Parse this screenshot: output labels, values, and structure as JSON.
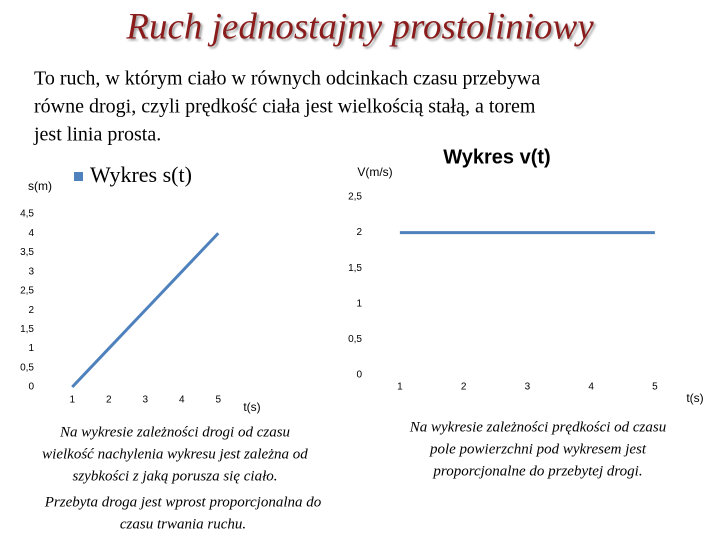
{
  "title": "Ruch jednostajny prostoliniowy",
  "intro": [
    "To ruch, w którym ciało w równych odcinkach czasu przebywa",
    "równe drogi, czyli prędkość ciała jest wielkością stałą, a torem",
    "jest linia prosta."
  ],
  "chart_data": [
    {
      "type": "line",
      "title": "Wykres s(t)",
      "y_label": "s(m)",
      "x_label": "t(s)",
      "color": "#4f81bd",
      "categories": [
        "1",
        "2",
        "3",
        "4",
        "5"
      ],
      "values": [
        0,
        1,
        2,
        3,
        4
      ],
      "ylim": [
        0,
        4.5
      ],
      "yticks": [
        0,
        {
          "value": 0.5,
          "label": "0,5"
        },
        1,
        {
          "value": 1.5,
          "label": "1,5"
        },
        2,
        {
          "value": 2.5,
          "label": "2,5"
        },
        3,
        {
          "value": 3.5,
          "label": "3,5"
        },
        4,
        {
          "value": 4.5,
          "label": "4,5"
        }
      ]
    },
    {
      "type": "line",
      "title": "Wykres v(t)",
      "y_label": "V(m/s)",
      "x_label": "t(s)",
      "color": "#4f81bd",
      "categories": [
        "1",
        "2",
        "3",
        "4",
        "5"
      ],
      "values": [
        2,
        2,
        2,
        2,
        2
      ],
      "ylim": [
        0,
        2.5
      ],
      "yticks": [
        0,
        {
          "value": 0.5,
          "label": "0,5"
        },
        1,
        {
          "value": 1.5,
          "label": "1,5"
        },
        2,
        {
          "value": 2.5,
          "label": "2,5"
        }
      ]
    }
  ],
  "captions": [
    [
      "Na wykresie zależności drogi od czasu",
      "wielkość nachylenia wykresu jest zależna od",
      "szybkości z jaką porusza się ciało."
    ],
    [
      "Przebyta droga jest wprost proporcjonalna do",
      "czasu trwania ruchu."
    ],
    [
      "Na wykresie zależności prędkości od czasu",
      "pole powierzchni pod wykresem jest",
      "proporcjonalne do przebytej drogi."
    ]
  ]
}
